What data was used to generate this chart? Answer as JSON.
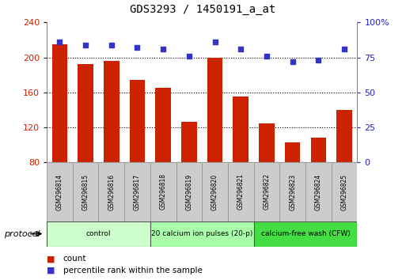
{
  "title": "GDS3293 / 1450191_a_at",
  "samples": [
    "GSM296814",
    "GSM296815",
    "GSM296816",
    "GSM296817",
    "GSM296818",
    "GSM296819",
    "GSM296820",
    "GSM296821",
    "GSM296822",
    "GSM296823",
    "GSM296824",
    "GSM296825"
  ],
  "counts": [
    215,
    192,
    196,
    174,
    165,
    126,
    200,
    155,
    125,
    103,
    108,
    140
  ],
  "percentile_ranks": [
    86,
    84,
    84,
    82,
    81,
    76,
    86,
    81,
    76,
    72,
    73,
    81
  ],
  "bar_color": "#cc2200",
  "dot_color": "#3333cc",
  "ylim_left": [
    80,
    240
  ],
  "ylim_right": [
    0,
    100
  ],
  "yticks_left": [
    80,
    120,
    160,
    200,
    240
  ],
  "yticks_right": [
    0,
    25,
    50,
    75,
    100
  ],
  "groups": [
    {
      "label": "control",
      "start": 0,
      "end": 4,
      "color": "#ccffcc"
    },
    {
      "label": "20 calcium ion pulses (20-p)",
      "start": 4,
      "end": 8,
      "color": "#aaffaa"
    },
    {
      "label": "calcium-free wash (CFW)",
      "start": 8,
      "end": 12,
      "color": "#44dd44"
    }
  ],
  "protocol_label": "protocol",
  "legend_count_label": "count",
  "legend_percentile_label": "percentile rank within the sample",
  "background_color": "#ffffff",
  "plot_bg_color": "#ffffff",
  "tick_label_color_left": "#cc2200",
  "tick_label_color_right": "#2222bb",
  "grid_color": "#000000",
  "sample_box_color": "#cccccc",
  "sample_box_edge_color": "#999999"
}
